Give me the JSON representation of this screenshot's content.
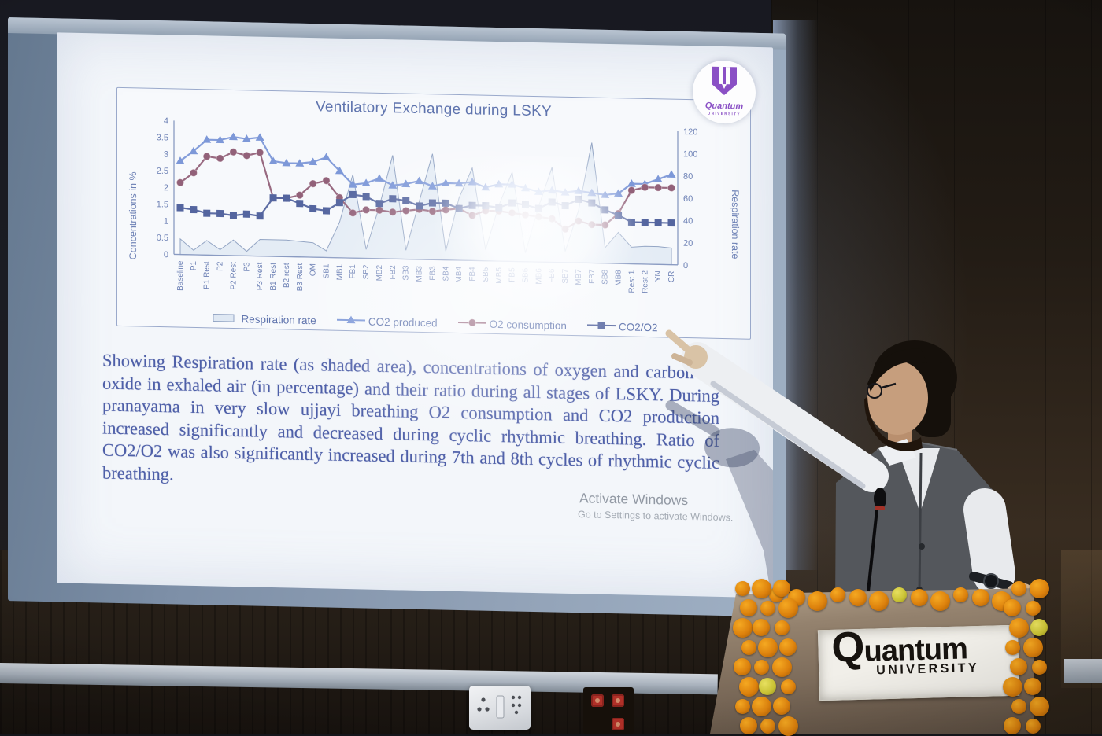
{
  "chart_data": {
    "type": "line",
    "title": "Ventilatory Exchange during LSKY",
    "ylabel_left": "Concentrations in %",
    "ylabel_right": "Respiration rate",
    "ylim_left": [
      0,
      4
    ],
    "yticks_left": [
      0,
      0.5,
      1,
      1.5,
      2,
      2.5,
      3,
      3.5,
      4
    ],
    "ylim_right": [
      0,
      120
    ],
    "yticks_right": [
      0,
      20,
      40,
      60,
      80,
      100,
      120
    ],
    "legend_position": "bottom",
    "grid": false,
    "categories": [
      "Baseline",
      "P1",
      "P1 Rest",
      "P2",
      "P2 Rest",
      "P3",
      "P3 Rest",
      "B1 Rest",
      "B2 rest",
      "B3 Rest",
      "OM",
      "SB1",
      "MB1",
      "FB1",
      "SB2",
      "MB2",
      "FB2",
      "SB3",
      "MB3",
      "FB3",
      "SB4",
      "MB4",
      "FB4",
      "SB5",
      "MB5",
      "FB5",
      "SB6",
      "MB6",
      "FB6",
      "SB7",
      "MB7",
      "FB7",
      "SB8",
      "MB8",
      "Rest 1",
      "Rest 2",
      "YN",
      "CR"
    ],
    "series": [
      {
        "name": "Respiration rate",
        "type": "area",
        "axis": "right",
        "color": "#93a5c4",
        "fill": "#dfe8f3",
        "values": [
          14,
          4,
          13,
          5,
          14,
          4,
          15,
          15,
          15,
          14,
          13,
          6,
          32,
          75,
          8,
          47,
          93,
          8,
          52,
          95,
          8,
          56,
          83,
          10,
          50,
          80,
          8,
          50,
          85,
          10,
          47,
          108,
          14,
          28,
          15,
          16,
          16,
          15
        ]
      },
      {
        "name": "CO2 produced",
        "type": "line",
        "marker": "triangle",
        "axis": "left",
        "color": "#7d98d8",
        "values": [
          2.8,
          3.1,
          3.45,
          3.45,
          3.55,
          3.5,
          3.55,
          2.85,
          2.8,
          2.8,
          2.85,
          3.0,
          2.6,
          2.2,
          2.25,
          2.4,
          2.2,
          2.25,
          2.35,
          2.2,
          2.3,
          2.3,
          2.35,
          2.2,
          2.3,
          2.3,
          2.2,
          2.1,
          2.15,
          2.1,
          2.15,
          2.1,
          2.05,
          2.1,
          2.4,
          2.4,
          2.55,
          2.7
        ]
      },
      {
        "name": "O2 consumption",
        "type": "line",
        "marker": "circle",
        "axis": "left",
        "color": "#926179",
        "values": [
          2.15,
          2.45,
          2.95,
          2.9,
          3.1,
          3.0,
          3.1,
          1.75,
          1.75,
          1.85,
          2.2,
          2.3,
          1.8,
          1.35,
          1.45,
          1.45,
          1.4,
          1.45,
          1.5,
          1.45,
          1.5,
          1.55,
          1.35,
          1.5,
          1.5,
          1.45,
          1.4,
          1.35,
          1.3,
          1.0,
          1.25,
          1.15,
          1.15,
          1.5,
          2.2,
          2.3,
          2.3,
          2.3
        ]
      },
      {
        "name": "CO2/O2",
        "type": "line",
        "marker": "square",
        "axis": "left",
        "color": "#54659f",
        "values": [
          1.4,
          1.35,
          1.25,
          1.25,
          1.2,
          1.25,
          1.2,
          1.75,
          1.75,
          1.6,
          1.45,
          1.4,
          1.65,
          1.9,
          1.85,
          1.65,
          1.8,
          1.75,
          1.6,
          1.7,
          1.7,
          1.55,
          1.65,
          1.65,
          1.6,
          1.75,
          1.7,
          1.6,
          1.8,
          1.7,
          1.9,
          1.8,
          1.6,
          1.45,
          1.25,
          1.25,
          1.25,
          1.25
        ]
      }
    ]
  },
  "slide": {
    "paragraph": "Showing Respiration rate (as shaded area), concentrations of oxygen and carbon-di-oxide in exhaled air (in percentage) and their ratio during all stages of LSKY. During pranayama in very slow ujjayi breathing O2 consumption and CO2 production increased significantly and decreased during cyclic rhythmic breathing. Ratio of CO2/O2 was also significantly increased during 7th and 8th cycles of rhythmic cyclic breathing.",
    "watermark_line1": "Activate Windows",
    "watermark_line2": "Go to Settings to activate Windows.",
    "logo_name": "Quantum",
    "logo_subname": "UNIVERSITY"
  },
  "podium": {
    "sign_name": "Quantum",
    "sign_subname": "UNIVERSITY"
  },
  "colors": {
    "slide_bg": "#f3f6fa",
    "chart_title": "#5f74ae",
    "body_text": "#4e5fa8",
    "axis_text": "#6d81b5",
    "logo_purple": "#8a50c5",
    "marigold_orange": "#e08a12",
    "marigold_yellow": "#d5cf45",
    "podium_sign_text": "#17130f"
  }
}
